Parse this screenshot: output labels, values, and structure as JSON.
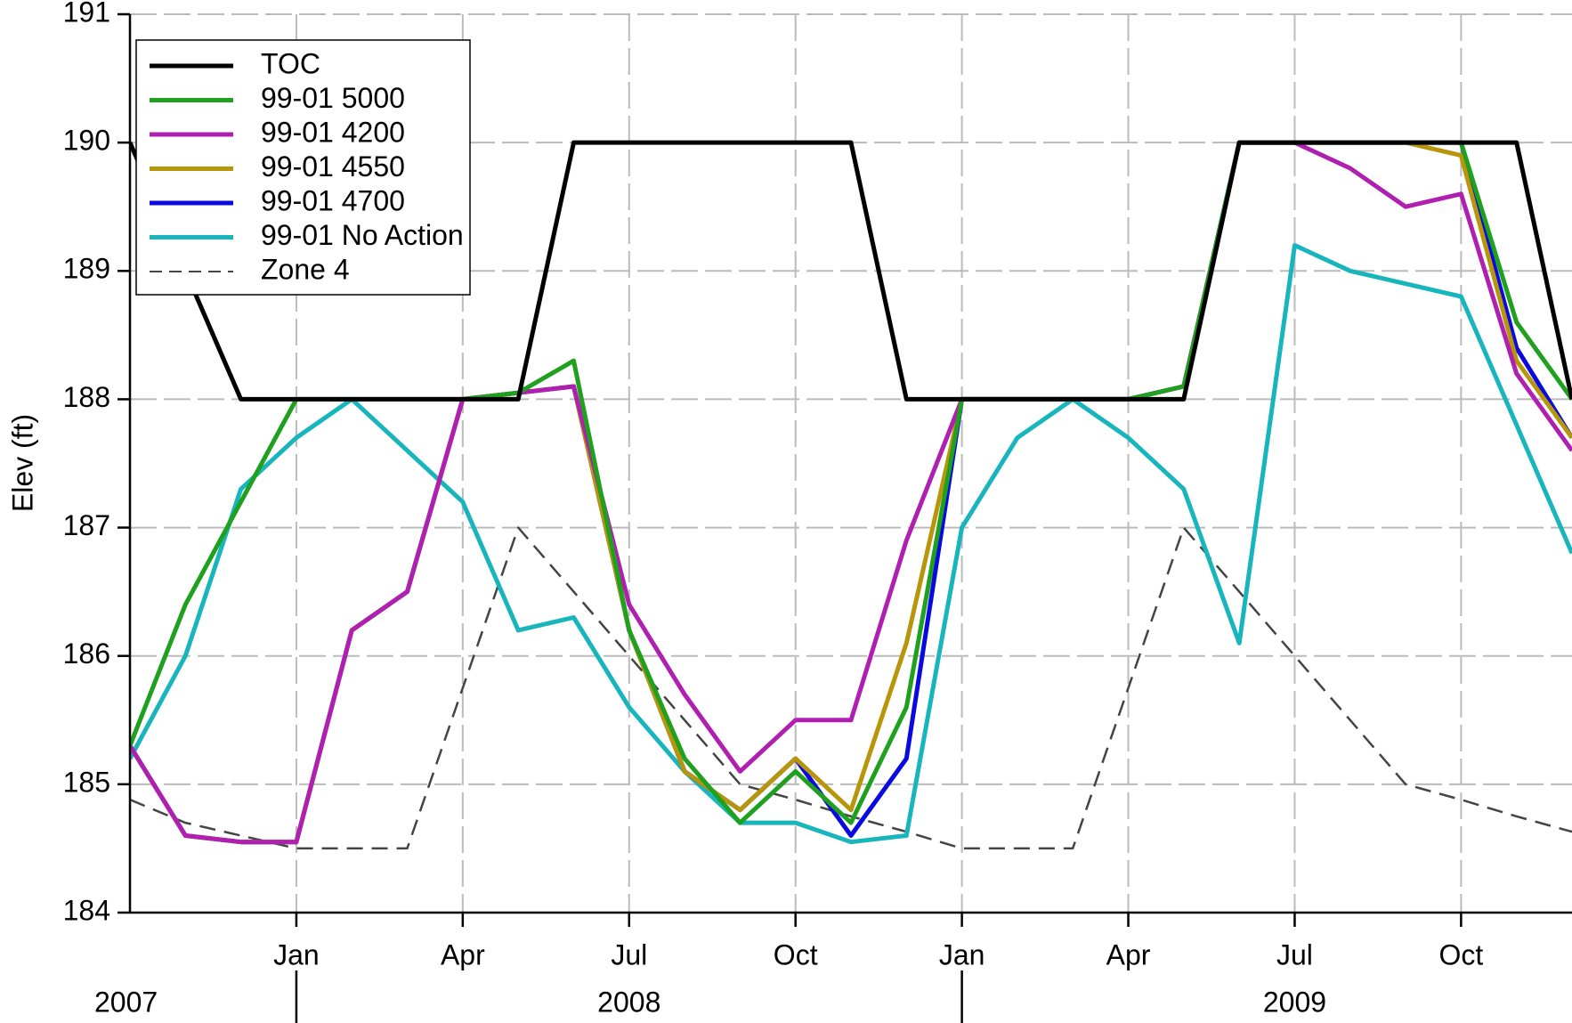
{
  "chart_data": {
    "type": "line",
    "y_label": "Elev (ft)",
    "x": [
      "2007-10",
      "2007-11",
      "2007-12",
      "2008-01",
      "2008-02",
      "2008-03",
      "2008-04",
      "2008-05",
      "2008-06",
      "2008-07",
      "2008-08",
      "2008-09",
      "2008-10",
      "2008-11",
      "2008-12",
      "2009-01",
      "2009-02",
      "2009-03",
      "2009-04",
      "2009-05",
      "2009-06",
      "2009-07",
      "2009-08",
      "2009-09",
      "2009-10",
      "2009-11",
      "2009-12"
    ],
    "xlim": [
      "2007-10",
      "2009-12"
    ],
    "xticks": [
      {
        "value": "2008-01",
        "label": "Jan"
      },
      {
        "value": "2008-04",
        "label": "Apr"
      },
      {
        "value": "2008-07",
        "label": "Jul"
      },
      {
        "value": "2008-10",
        "label": "Oct"
      },
      {
        "value": "2009-01",
        "label": "Jan"
      },
      {
        "value": "2009-04",
        "label": "Apr"
      },
      {
        "value": "2009-07",
        "label": "Jul"
      },
      {
        "value": "2009-10",
        "label": "Oct"
      }
    ],
    "years": [
      "2007",
      "2008",
      "2009"
    ],
    "ylim": [
      184,
      191
    ],
    "yticks": [
      184,
      185,
      186,
      187,
      188,
      189,
      190,
      191
    ],
    "grid": true,
    "legend": "upper left",
    "series": [
      {
        "name": "TOC",
        "color": "#000000",
        "style": "solid",
        "values": [
          190,
          189,
          188,
          188,
          188,
          188,
          188,
          188,
          190,
          190,
          190,
          190,
          190,
          190,
          188,
          188,
          188,
          188,
          188,
          188,
          190,
          190,
          190,
          190,
          190,
          190,
          188
        ]
      },
      {
        "name": "99-01 5000",
        "color": "#1fa01f",
        "style": "solid",
        "values": [
          185.3,
          186.4,
          187.2,
          188,
          188,
          188,
          188,
          188.05,
          188.3,
          186.2,
          185.2,
          184.7,
          185.1,
          184.7,
          185.6,
          188,
          188,
          188,
          188,
          188.1,
          190,
          190,
          190,
          190,
          190,
          188.6,
          188
        ]
      },
      {
        "name": "99-01 4200",
        "color": "#b020b0",
        "style": "solid",
        "values": [
          185.3,
          184.6,
          184.55,
          184.55,
          186.2,
          186.5,
          188,
          188.05,
          188.1,
          186.4,
          185.7,
          185.1,
          185.5,
          185.5,
          186.9,
          188,
          188,
          188,
          188,
          188.1,
          190,
          190,
          189.8,
          189.5,
          189.6,
          188.2,
          187.6
        ]
      },
      {
        "name": "99-01 4550",
        "color": "#b8960c",
        "style": "solid",
        "values": [
          185.3,
          184.6,
          184.55,
          184.55,
          186.2,
          186.5,
          188,
          188.05,
          188.1,
          186.2,
          185.1,
          184.8,
          185.2,
          184.8,
          186.1,
          188,
          188,
          188,
          188,
          188.1,
          190,
          190,
          190,
          190,
          189.9,
          188.3,
          187.7
        ]
      },
      {
        "name": "99-01 4700",
        "color": "#0a0ae0",
        "style": "solid",
        "values": [
          185.3,
          184.6,
          184.55,
          184.55,
          186.2,
          186.5,
          188,
          188.05,
          188.1,
          186.2,
          185.1,
          184.8,
          185.2,
          184.6,
          185.2,
          188,
          188,
          188,
          188,
          188.1,
          190,
          190,
          190,
          190,
          190,
          188.4,
          187.7
        ]
      },
      {
        "name": "99-01 No Action",
        "color": "#19b5bd",
        "style": "solid",
        "values": [
          185.2,
          186,
          187.3,
          187.7,
          188,
          187.6,
          187.2,
          186.2,
          186.3,
          185.6,
          185.1,
          184.7,
          184.7,
          184.55,
          184.6,
          187,
          187.7,
          188,
          187.7,
          187.3,
          186.1,
          189.2,
          189,
          188.9,
          188.8,
          187.8,
          186.8
        ]
      },
      {
        "name": "Zone 4",
        "color": "#444444",
        "style": "dashed",
        "values": [
          184.88,
          184.7,
          184.6,
          184.5,
          184.5,
          184.5,
          185.75,
          187,
          186.5,
          186,
          185.5,
          185,
          184.88,
          184.75,
          184.63,
          184.5,
          184.5,
          184.5,
          185.75,
          187,
          186.5,
          186,
          185.5,
          185,
          184.88,
          184.75,
          184.63
        ]
      }
    ]
  }
}
